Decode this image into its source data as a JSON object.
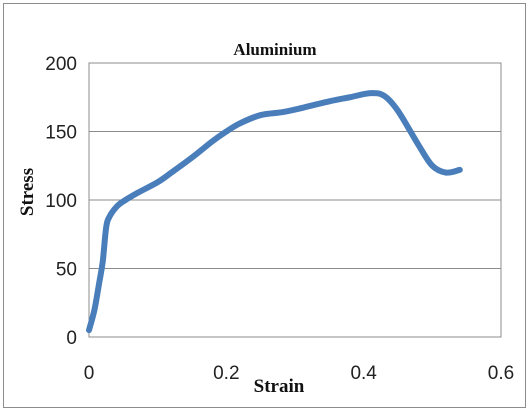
{
  "chart_data": {
    "type": "line",
    "title": "Aluminium",
    "xlabel": "Strain",
    "ylabel": "Stress",
    "xlim": [
      0,
      0.6
    ],
    "ylim": [
      0,
      200
    ],
    "x_ticks": [
      "0",
      "0.2",
      "0.4",
      "0.6"
    ],
    "y_ticks": [
      "0",
      "50",
      "100",
      "150",
      "200"
    ],
    "grid": "horizontal",
    "legend": "none",
    "series": [
      {
        "color": "#4A7EBB",
        "x": [
          0,
          0.008,
          0.015,
          0.02,
          0.025,
          0.03,
          0.04,
          0.05,
          0.07,
          0.1,
          0.12,
          0.15,
          0.18,
          0.2,
          0.22,
          0.25,
          0.28,
          0.3,
          0.35,
          0.38,
          0.41,
          0.43,
          0.45,
          0.48,
          0.5,
          0.52,
          0.54
        ],
        "y": [
          5,
          20,
          40,
          55,
          80,
          88,
          95,
          99,
          105,
          113,
          120,
          131,
          143,
          150,
          156,
          162,
          164,
          166,
          172,
          175,
          178,
          176,
          165,
          140,
          125,
          120,
          122
        ]
      }
    ]
  }
}
